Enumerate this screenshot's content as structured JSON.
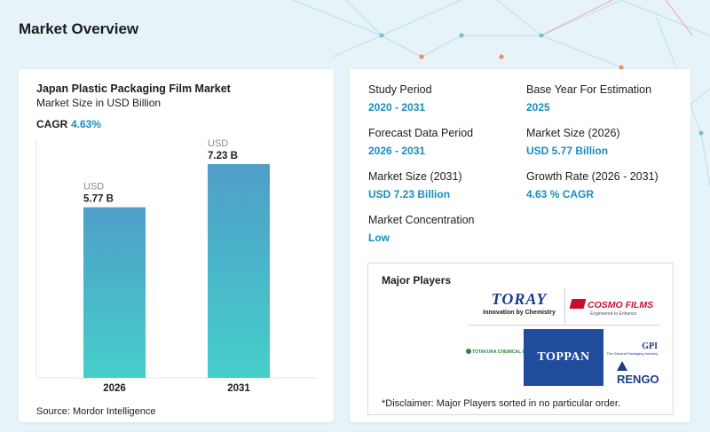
{
  "header": {
    "title": "Market Overview"
  },
  "chart_card": {
    "title": "Japan Plastic Packaging Film Market",
    "subtitle": "Market Size in USD Billion",
    "cagr_label": "CAGR",
    "cagr_value": "4.63%",
    "source": "Source: Mordor Intelligence"
  },
  "chart_data": {
    "type": "bar",
    "categories": [
      "2026",
      "2031"
    ],
    "values": [
      5.77,
      7.23
    ],
    "data_labels": [
      "5.77 B",
      "7.23 B"
    ],
    "data_label_prefix": "USD",
    "title": "Japan Plastic Packaging Film Market",
    "subtitle": "Market Size in USD Billion",
    "ylim": [
      0,
      8.1
    ],
    "grid": false,
    "colors": {
      "top": "#4f9ec9",
      "bottom": "#45cfca"
    }
  },
  "stats": {
    "study_period": {
      "label": "Study Period",
      "value": "2020 - 2031"
    },
    "base_year": {
      "label": "Base Year For Estimation",
      "value": "2025"
    },
    "forecast_period": {
      "label": "Forecast Data Period",
      "value": "2026 - 2031"
    },
    "market_size_2026": {
      "label": "Market Size (2026)",
      "value": "USD 5.77 Billion"
    },
    "market_size_2031": {
      "label": "Market Size (2031)",
      "value": "USD 7.23 Billion"
    },
    "growth_rate": {
      "label": "Growth Rate (2026 - 2031)",
      "value": "4.63 % CAGR"
    },
    "concentration": {
      "label": "Market Concentration",
      "value": "Low"
    }
  },
  "players": {
    "title": "Major Players",
    "disclaimer": "*Disclaimer: Major Players sorted in no particular order.",
    "toray": {
      "name": "TORAY",
      "tagline": "Innovation by Chemistry"
    },
    "cosmo": {
      "name": "COSMO FILMS",
      "tagline": "Engineered to Enhance"
    },
    "toppan": {
      "name": "TOPPAN"
    },
    "totakura": {
      "name": "TOTAKURA CHEMICAL CO.,LTD"
    },
    "gpi": {
      "name": "GPI",
      "tagline": "The General Packaging Industry"
    },
    "rengo": {
      "name": "RENGO"
    }
  },
  "colors": {
    "accent": "#1a8cc0",
    "bar_top": "#4f9ec9",
    "bar_bottom": "#45cfca",
    "background": "#e6f3f8"
  }
}
